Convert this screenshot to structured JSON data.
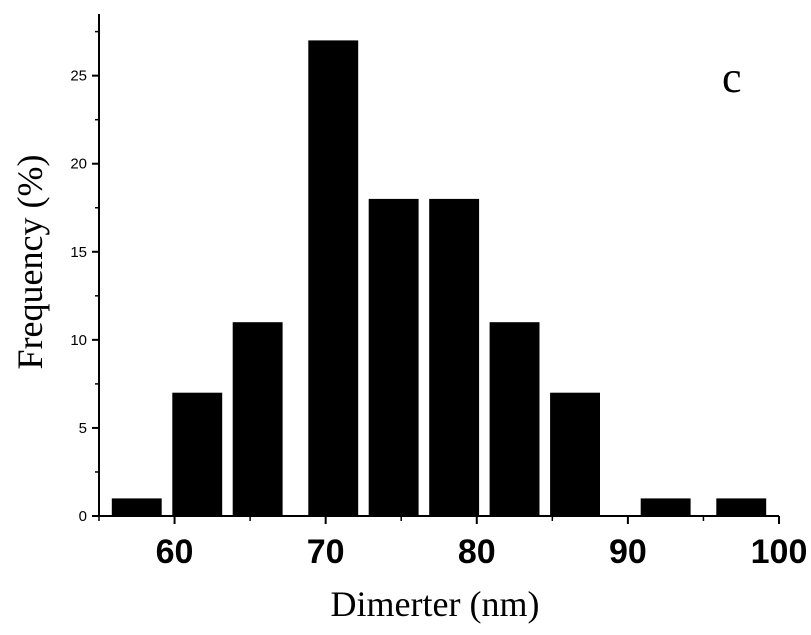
{
  "chart_data": {
    "type": "bar",
    "title": "",
    "xlabel": "Dimerter (nm)",
    "ylabel": "Frequency (%)",
    "panel_label": "c",
    "x": [
      57.5,
      61.5,
      65.5,
      70.5,
      74.5,
      78.5,
      82.5,
      86.5,
      92.5,
      97.5
    ],
    "values": [
      1,
      7,
      11,
      27,
      18,
      18,
      11,
      7,
      1,
      1
    ],
    "bar_width": 3.3,
    "xlim": [
      55,
      100
    ],
    "ylim": [
      0,
      28.5
    ],
    "xticks": [
      60,
      70,
      80,
      90,
      100
    ],
    "xtick_labels": [
      "60",
      "70",
      "80",
      "90",
      "100"
    ],
    "yticks": [
      0,
      5,
      10,
      15,
      20,
      25
    ],
    "ytick_labels": [
      "0",
      "5",
      "10",
      "15",
      "20",
      "25"
    ],
    "bar_color": "#000000",
    "grid": false,
    "legend": "none"
  }
}
